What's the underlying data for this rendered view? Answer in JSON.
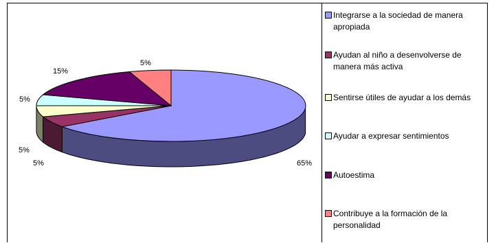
{
  "chart_data": {
    "type": "pie",
    "title": "",
    "slices": [
      {
        "name": "Integrarse a la sociedad de manera apropiada",
        "value": 65,
        "label": "65%",
        "color": "#9999ff",
        "side_color": "#4c4c80"
      },
      {
        "name": "Ayudan al niño a desenvolverse de manera más activa",
        "value": 5,
        "label": "5%",
        "color": "#993366",
        "side_color": "#4c1a33"
      },
      {
        "name": "Sentirse útiles de ayudar a los demás",
        "value": 5,
        "label": "5%",
        "color": "#ffffcc",
        "side_color": "#808066"
      },
      {
        "name": "Ayudar a expresar sentimientos",
        "value": 5,
        "label": "5%",
        "color": "#ccffff",
        "side_color": "#668080"
      },
      {
        "name": "Autoestima",
        "value": 15,
        "label": "15%",
        "color": "#660066",
        "side_color": "#330033"
      },
      {
        "name": "Contribuye a la formación de la personalidad",
        "value": 5,
        "label": "5%",
        "color": "#ff8080",
        "side_color": "#804040"
      }
    ],
    "legend_position": "right"
  }
}
